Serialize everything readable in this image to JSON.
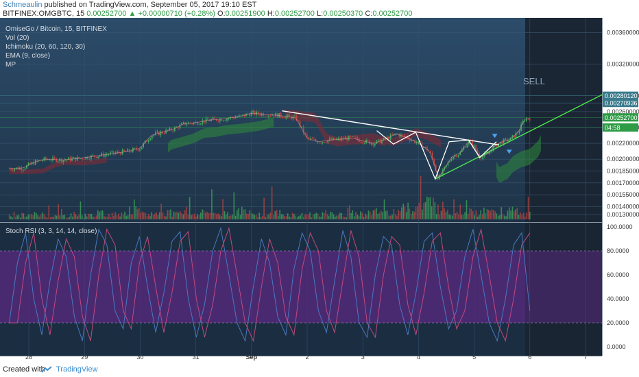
{
  "header": {
    "author": "Schmeaulin",
    "published": "published on TradingView.com, September 05, 2017 19:10 EST",
    "symbol": "BITFINEX:OMGBTC, 15",
    "price": "0.00252700",
    "change": "+0.00000710 (+0.28%)",
    "open_label": "O:",
    "open": "0.00251900",
    "high_label": "H:",
    "high": "0.00252700",
    "low_label": "L:",
    "low": "0.00250370",
    "close_label": "C:",
    "close": "0.00252700"
  },
  "legend": [
    "OmiseGo / Bitcoin, 15, BITFINEX",
    "Vol (20)",
    "Ichimoku (20, 60, 120, 30)",
    "EMA (9, close)",
    "MP"
  ],
  "annotations": {
    "sell": "SELL"
  },
  "price_axis": {
    "ticks": [
      {
        "label": "0.00360000",
        "value": 0.0036
      },
      {
        "label": "0.00320000",
        "value": 0.0032
      },
      {
        "label": "0.00280000",
        "value": 0.0028
      },
      {
        "label": "0.00260000",
        "value": 0.0026
      },
      {
        "label": "0.00240000",
        "value": 0.0024
      },
      {
        "label": "0.00220000",
        "value": 0.0022
      },
      {
        "label": "0.00200000",
        "value": 0.002
      },
      {
        "label": "0.00185000",
        "value": 0.00185
      },
      {
        "label": "0.00170000",
        "value": 0.0017
      },
      {
        "label": "0.00155000",
        "value": 0.00155
      },
      {
        "label": "0.00140000",
        "value": 0.0014
      },
      {
        "label": "0.00130000",
        "value": 0.0013
      }
    ],
    "badges": [
      {
        "label": "0.00280120",
        "value": 0.0028012,
        "color": "#3a7a8c"
      },
      {
        "label": "0.00270936",
        "value": 0.00270936,
        "color": "#3a7a8c"
      },
      {
        "label": "0.00252700",
        "value": 0.002527,
        "color": "#2e9c46"
      },
      {
        "label": "04:58",
        "value": 0.0024,
        "color": "#2e9c46"
      }
    ]
  },
  "rsi_panel": {
    "title": "Stoch RSI (3, 3, 14, 14, close)",
    "ticks": [
      "100.0000",
      "80.0000",
      "60.0000",
      "40.0000",
      "20.0000",
      "0.0000"
    ],
    "band": [
      20,
      80
    ],
    "band_color": "#5a2a80"
  },
  "time_axis": {
    "labels": [
      {
        "text": "28",
        "day": 0
      },
      {
        "text": "29",
        "day": 1
      },
      {
        "text": "30",
        "day": 2
      },
      {
        "text": "31",
        "day": 3
      },
      {
        "text": "Sep",
        "day": 4
      },
      {
        "text": "2",
        "day": 5
      },
      {
        "text": "3",
        "day": 6
      },
      {
        "text": "4",
        "day": 7
      },
      {
        "text": "5",
        "day": 8
      },
      {
        "text": "6",
        "day": 9
      },
      {
        "text": "7",
        "day": 10
      }
    ]
  },
  "chart_data": {
    "type": "line",
    "title": "OmiseGo / Bitcoin, 15, BITFINEX",
    "x_unit": "days from Aug 28",
    "ylim": [
      0.00124,
      0.00375
    ],
    "series": [
      {
        "name": "OmiseGo / Bitcoin",
        "x": [
          -0.35,
          -0.1,
          0.1,
          0.3,
          0.6,
          0.9,
          1.2,
          1.5,
          1.8,
          2.0,
          2.2,
          2.35,
          2.6,
          2.8,
          3.0,
          3.2,
          3.5,
          3.8,
          4.0,
          4.2,
          4.4,
          4.6,
          4.8,
          5.0,
          5.2,
          5.4,
          5.6,
          5.8,
          6.0,
          6.2,
          6.4,
          6.6,
          6.8,
          7.0,
          7.1,
          7.2,
          7.3,
          7.35,
          7.45,
          7.6,
          7.75,
          7.9,
          8.0,
          8.1,
          8.25,
          8.35,
          8.5,
          8.65,
          8.8,
          8.9,
          9.0
        ],
        "values": [
          0.00188,
          0.00189,
          0.00196,
          0.002,
          0.00199,
          0.00201,
          0.00204,
          0.00207,
          0.0021,
          0.00214,
          0.0023,
          0.00233,
          0.00238,
          0.00245,
          0.00246,
          0.00249,
          0.00251,
          0.00254,
          0.00258,
          0.00257,
          0.00256,
          0.00254,
          0.00252,
          0.00226,
          0.00222,
          0.00224,
          0.00225,
          0.00227,
          0.00223,
          0.0022,
          0.00225,
          0.00232,
          0.00227,
          0.0022,
          0.00215,
          0.0021,
          0.0019,
          0.00175,
          0.00186,
          0.00203,
          0.00208,
          0.00223,
          0.00216,
          0.00202,
          0.00207,
          0.00216,
          0.00222,
          0.00225,
          0.00235,
          0.0025,
          0.00252
        ]
      }
    ],
    "volume": [
      0.2,
      0.25,
      0.3,
      0.25,
      0.2,
      0.3,
      0.25,
      0.35,
      0.3,
      0.4,
      0.5,
      0.3,
      0.35,
      0.4,
      0.55,
      0.3,
      0.45,
      0.35,
      0.4,
      0.5,
      0.35,
      0.3,
      0.4,
      0.3,
      0.25,
      0.3,
      0.35,
      0.3,
      0.25,
      0.35,
      0.4,
      0.45,
      0.5,
      0.6,
      0.8,
      1.0,
      0.7,
      0.5,
      0.6,
      0.4,
      0.45,
      0.35,
      0.5,
      0.3
    ],
    "stoch_rsi": [
      20,
      70,
      95,
      40,
      10,
      55,
      90,
      75,
      25,
      5,
      60,
      98,
      85,
      30,
      15,
      70,
      92,
      50,
      12,
      45,
      88,
      96,
      40,
      8,
      35,
      80,
      99,
      60,
      20,
      5,
      50,
      90,
      70,
      25,
      10,
      65,
      95,
      80,
      30,
      12,
      55,
      97,
      75,
      20,
      8,
      60,
      92,
      85,
      35,
      10,
      45,
      88,
      95,
      50,
      15,
      30,
      75,
      98,
      60,
      20,
      5,
      40,
      85,
      95,
      30
    ]
  }
}
